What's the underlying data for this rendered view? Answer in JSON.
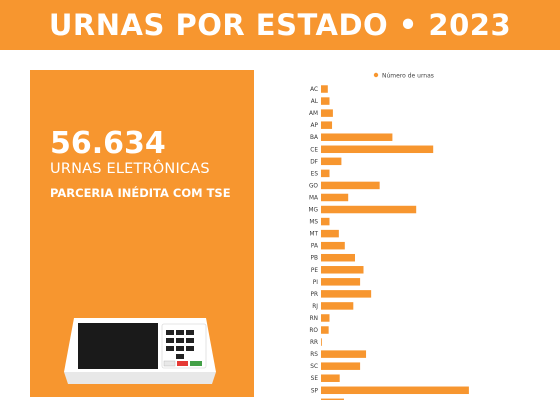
{
  "header": {
    "title": "URNAS POR ESTADO • 2023"
  },
  "panel": {
    "count": "56.634",
    "count_label": "URNAS ELETRÔNICAS",
    "tagline": "PARCERIA INÉDITA COM TSE"
  },
  "colors": {
    "brand_orange": "#f7962f",
    "bar": "#f7962f"
  },
  "illustration": "electronic-voting-machine",
  "chart_data": {
    "type": "bar",
    "orientation": "horizontal",
    "categories": [
      "AC",
      "AL",
      "AM",
      "AP",
      "BA",
      "CE",
      "DF",
      "ES",
      "GO",
      "MA",
      "MG",
      "MS",
      "MT",
      "PA",
      "PB",
      "PE",
      "PI",
      "PR",
      "RJ",
      "RN",
      "RO",
      "RR",
      "RS",
      "SC",
      "SE",
      "SP",
      "TO"
    ],
    "series": [
      {
        "name": "Número de urnas",
        "values": [
          400,
          500,
          700,
          650,
          4200,
          6600,
          1200,
          500,
          3450,
          1600,
          5600,
          500,
          1050,
          1400,
          2000,
          2500,
          2300,
          2950,
          1900,
          500,
          450,
          50,
          2650,
          2300,
          1100,
          8700,
          1350
        ]
      }
    ],
    "x_ticks": [
      "0",
      "2.500",
      "5.000",
      "7.500",
      "10.000"
    ],
    "xlim": [
      0,
      10000
    ],
    "title": "",
    "xlabel": "",
    "ylabel": "",
    "grid": false,
    "legend": "top-center"
  }
}
